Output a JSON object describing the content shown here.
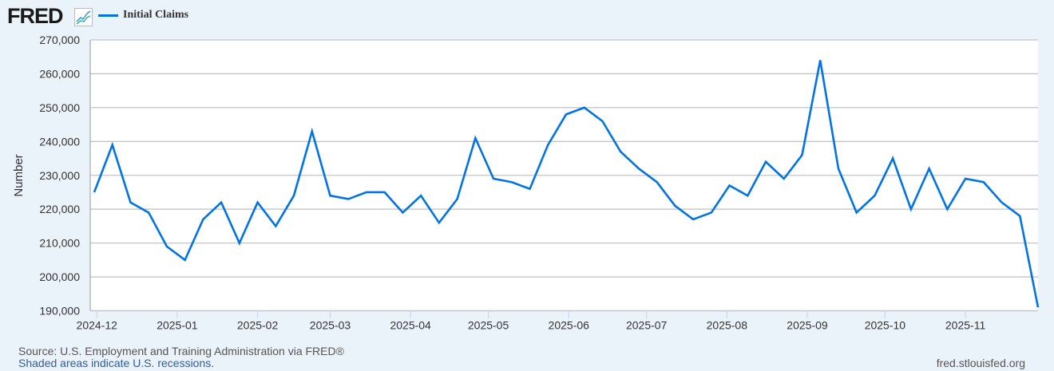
{
  "header": {
    "logo": "FRED",
    "logo_icon": "chart-line-icon"
  },
  "footer": {
    "source": "Source: U.S. Employment and Training Administration via FRED®",
    "recessions": "Shaded areas indicate U.S. recessions.",
    "site": "fred.stlouisfed.org"
  },
  "chart_data": {
    "type": "line",
    "title": "",
    "xlabel": "",
    "ylabel": "Number",
    "ylim": [
      190000,
      270000
    ],
    "yticks": [
      190000,
      200000,
      210000,
      220000,
      230000,
      240000,
      250000,
      260000,
      270000
    ],
    "ytick_labels": [
      "190,000",
      "200,000",
      "210,000",
      "220,000",
      "230,000",
      "240,000",
      "250,000",
      "260,000",
      "270,000"
    ],
    "xticks": [
      "2024-12-01",
      "2025-01-01",
      "2025-02-01",
      "2025-03-01",
      "2025-04-01",
      "2025-05-01",
      "2025-06-01",
      "2025-07-01",
      "2025-08-01",
      "2025-09-01",
      "2025-10-01",
      "2025-11-01"
    ],
    "xtick_labels": [
      "2024-12",
      "2025-01",
      "2025-02",
      "2025-03",
      "2025-04",
      "2025-05",
      "2025-06",
      "2025-07",
      "2025-08",
      "2025-09",
      "2025-10",
      "2025-11"
    ],
    "grid": true,
    "legend": "top-left",
    "series": [
      {
        "name": "Initial Claims",
        "color": "#0073e6",
        "start": "2024-11-30",
        "frequency": "weekly",
        "values": [
          225000,
          239000,
          222000,
          219000,
          209000,
          205000,
          217000,
          222000,
          210000,
          222000,
          215000,
          224000,
          243000,
          224000,
          223000,
          225000,
          225000,
          219000,
          224000,
          216000,
          223000,
          241000,
          229000,
          228000,
          226000,
          239000,
          248000,
          250000,
          246000,
          237000,
          232000,
          228000,
          221000,
          217000,
          219000,
          227000,
          224000,
          234000,
          229000,
          236000,
          264000,
          232000,
          219000,
          224000,
          235000,
          220000,
          232000,
          220000,
          229000,
          228000,
          222000,
          218000,
          191000
        ]
      }
    ]
  }
}
